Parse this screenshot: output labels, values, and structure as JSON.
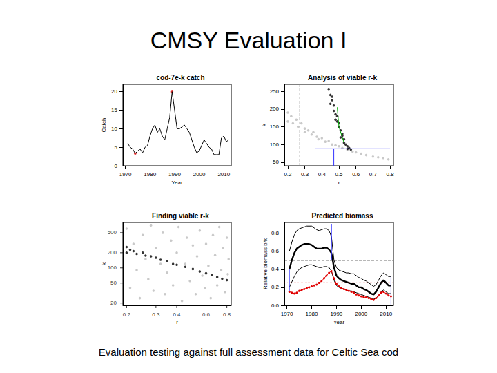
{
  "title": "CMSY Evaluation I",
  "caption": "Evaluation testing against full assessment data for Celtic Sea cod",
  "chart_data": [
    {
      "type": "line",
      "title": "cod-7e-k catch",
      "x_label": "Year",
      "y_label": "Catch",
      "x": [
        1971,
        1972,
        1973,
        1974,
        1975,
        1976,
        1977,
        1978,
        1979,
        1980,
        1981,
        1982,
        1983,
        1984,
        1985,
        1986,
        1987,
        1988,
        1989,
        1990,
        1991,
        1992,
        1993,
        1994,
        1995,
        1996,
        1997,
        1998,
        1999,
        2000,
        2001,
        2002,
        2003,
        2004,
        2005,
        2006,
        2007,
        2008,
        2009,
        2010,
        2011,
        2012
      ],
      "xlim": [
        1969,
        2013
      ],
      "xticks": [
        1970,
        1980,
        1990,
        2000,
        2010
      ],
      "ylim": [
        0,
        22
      ],
      "yticks": [
        0,
        5,
        10,
        15,
        20
      ],
      "grid": false,
      "series": [
        {
          "type": "line",
          "color": "#000000",
          "line_style": "solid",
          "values": [
            6,
            5,
            4.5,
            3.3,
            4,
            4.5,
            3.5,
            5,
            5.5,
            8,
            10,
            11,
            9,
            10,
            8,
            7,
            10,
            13,
            20,
            15,
            10,
            10,
            10.5,
            11,
            10,
            9,
            7,
            5,
            3.5,
            4,
            5.5,
            7,
            6,
            5,
            4.5,
            3,
            3,
            3,
            7.5,
            8,
            6.5,
            7
          ]
        },
        {
          "type": "scatter",
          "color": "#e00000",
          "marker": "circle",
          "x": [
            1974,
            1989
          ],
          "values": [
            3.3,
            20
          ]
        }
      ]
    },
    {
      "type": "scatter",
      "title": "Analysis of viable r-k",
      "x_label": "r",
      "y_label": "k",
      "xlim": [
        0.18,
        0.82
      ],
      "xticks": [
        0.2,
        0.3,
        0.4,
        0.5,
        0.6,
        0.7,
        0.8
      ],
      "ylim": [
        40,
        270
      ],
      "yticks": [
        50,
        100,
        150,
        200,
        250
      ],
      "grid": false,
      "series": [
        {
          "type": "scatter",
          "color": "#bbbbbb",
          "marker": "circle",
          "x": [
            0.2,
            0.2,
            0.22,
            0.23,
            0.25,
            0.26,
            0.28,
            0.3,
            0.3,
            0.32,
            0.34,
            0.35,
            0.37,
            0.38,
            0.4,
            0.42,
            0.44,
            0.46,
            0.48,
            0.5,
            0.52,
            0.55,
            0.58,
            0.6,
            0.63,
            0.66,
            0.7,
            0.73,
            0.76,
            0.79
          ],
          "values": [
            190,
            165,
            180,
            160,
            170,
            150,
            160,
            145,
            135,
            140,
            128,
            135,
            122,
            115,
            118,
            108,
            110,
            100,
            98,
            95,
            90,
            85,
            80,
            78,
            74,
            70,
            66,
            64,
            62,
            58
          ]
        },
        {
          "type": "scatter",
          "color": "#000000",
          "marker": "circle",
          "x": [
            0.44,
            0.45,
            0.46,
            0.45,
            0.47,
            0.47,
            0.48,
            0.49,
            0.48,
            0.5,
            0.5,
            0.51,
            0.52,
            0.51,
            0.53,
            0.53,
            0.54,
            0.55,
            0.56,
            0.49,
            0.46,
            0.52,
            0.55,
            0.57
          ],
          "values": [
            255,
            240,
            225,
            215,
            210,
            195,
            185,
            180,
            170,
            160,
            150,
            140,
            130,
            120,
            115,
            105,
            100,
            95,
            90,
            165,
            235,
            125,
            88,
            86
          ]
        },
        {
          "type": "line",
          "color": "#00aa00",
          "line_style": "solid",
          "x": [
            0.49,
            0.5,
            0.53
          ],
          "values": [
            205,
            150,
            105
          ]
        },
        {
          "type": "line",
          "color": "#3333ff",
          "line_style": "solid",
          "x": [
            0.47,
            0.47
          ],
          "values": [
            40,
            88
          ]
        },
        {
          "type": "line",
          "color": "#3333ff",
          "line_style": "solid",
          "x": [
            0.36,
            0.8
          ],
          "values": [
            88,
            88
          ]
        },
        {
          "type": "line",
          "color": "#888888",
          "line_style": "dashed",
          "x": [
            0.27,
            0.27
          ],
          "values": [
            40,
            270
          ]
        }
      ]
    },
    {
      "type": "scatter",
      "title": "Finding viable r-k",
      "x_label": "r",
      "y_label": "k",
      "log": true,
      "xlim": [
        0.19,
        0.85
      ],
      "xticks": [
        0.2,
        0.3,
        0.4,
        0.6,
        0.8
      ],
      "ylim": [
        18,
        800
      ],
      "yticks": [
        20,
        50,
        100,
        200,
        500
      ],
      "grid": false,
      "series": [
        {
          "type": "scatter",
          "color": "#bbbbbb",
          "marker": "circle",
          "x": [
            0.2,
            0.21,
            0.22,
            0.23,
            0.24,
            0.25,
            0.26,
            0.27,
            0.28,
            0.29,
            0.3,
            0.32,
            0.33,
            0.34,
            0.35,
            0.37,
            0.38,
            0.4,
            0.41,
            0.43,
            0.45,
            0.46,
            0.48,
            0.5,
            0.52,
            0.53,
            0.55,
            0.57,
            0.59,
            0.6,
            0.62,
            0.64,
            0.66,
            0.68,
            0.7,
            0.72,
            0.74,
            0.76,
            0.78,
            0.8,
            0.82,
            0.81
          ],
          "values": [
            600,
            40,
            300,
            90,
            25,
            450,
            150,
            60,
            700,
            35,
            250,
            120,
            500,
            30,
            80,
            350,
            45,
            200,
            650,
            22,
            120,
            400,
            55,
            280,
            30,
            170,
            550,
            70,
            40,
            300,
            110,
            25,
            450,
            180,
            45,
            650,
            90,
            250,
            33,
            400,
            150,
            75
          ]
        },
        {
          "type": "scatter",
          "color": "#000000",
          "marker": "circle",
          "x": [
            0.2,
            0.2,
            0.21,
            0.22,
            0.23,
            0.25,
            0.26,
            0.28,
            0.3,
            0.32,
            0.35,
            0.38,
            0.4,
            0.45,
            0.5,
            0.55,
            0.6,
            0.65,
            0.7,
            0.75,
            0.8
          ],
          "values": [
            260,
            200,
            230,
            215,
            190,
            200,
            175,
            170,
            160,
            145,
            135,
            120,
            115,
            105,
            95,
            85,
            78,
            72,
            66,
            61,
            57
          ]
        }
      ]
    },
    {
      "type": "line",
      "title": "Predicted biomass",
      "x_label": "Year",
      "y_label": "Relative biomass b/k",
      "x": [
        1971,
        1972,
        1973,
        1974,
        1975,
        1976,
        1977,
        1978,
        1979,
        1980,
        1981,
        1982,
        1983,
        1984,
        1985,
        1986,
        1987,
        1988,
        1989,
        1990,
        1991,
        1992,
        1993,
        1994,
        1995,
        1996,
        1997,
        1998,
        1999,
        2000,
        2001,
        2002,
        2003,
        2004,
        2005,
        2006,
        2007,
        2008,
        2009,
        2010,
        2011,
        2012
      ],
      "xlim": [
        1969,
        2013
      ],
      "xticks": [
        1970,
        1980,
        1990,
        2000,
        2010
      ],
      "ylim": [
        0,
        0.92
      ],
      "yticks": [
        {
          "value": 0,
          "label": "0.0"
        },
        0.2,
        0.4,
        0.6,
        0.8
      ],
      "grid": false,
      "series": [
        {
          "type": "line",
          "color": "#000000",
          "line_style": "solid",
          "values": [
            0.6,
            0.7,
            0.78,
            0.83,
            0.85,
            0.86,
            0.87,
            0.88,
            0.88,
            0.88,
            0.86,
            0.84,
            0.83,
            0.84,
            0.85,
            0.85,
            0.83,
            0.76,
            0.5,
            0.42,
            0.39,
            0.38,
            0.37,
            0.36,
            0.36,
            0.35,
            0.35,
            0.33,
            0.31,
            0.3,
            0.28,
            0.27,
            0.25,
            0.23,
            0.21,
            0.23,
            0.28,
            0.33,
            0.36,
            0.34,
            0.32,
            0.32
          ]
        },
        {
          "type": "line",
          "color": "#000000",
          "line_style": "solid",
          "values": [
            0.2,
            0.26,
            0.32,
            0.37,
            0.4,
            0.42,
            0.43,
            0.44,
            0.45,
            0.45,
            0.44,
            0.43,
            0.42,
            0.42,
            0.43,
            0.43,
            0.42,
            0.38,
            0.28,
            0.22,
            0.2,
            0.19,
            0.18,
            0.17,
            0.16,
            0.16,
            0.15,
            0.14,
            0.13,
            0.12,
            0.11,
            0.1,
            0.09,
            0.08,
            0.07,
            0.08,
            0.11,
            0.15,
            0.17,
            0.15,
            0.13,
            0.13
          ]
        },
        {
          "type": "line",
          "color": "#000000",
          "line_style": "thick",
          "values": [
            0.4,
            0.5,
            0.58,
            0.63,
            0.65,
            0.67,
            0.68,
            0.68,
            0.68,
            0.67,
            0.65,
            0.63,
            0.63,
            0.63,
            0.64,
            0.64,
            0.62,
            0.58,
            0.42,
            0.33,
            0.3,
            0.28,
            0.27,
            0.26,
            0.25,
            0.24,
            0.24,
            0.22,
            0.2,
            0.2,
            0.18,
            0.17,
            0.15,
            0.13,
            0.12,
            0.15,
            0.2,
            0.25,
            0.28,
            0.25,
            0.22,
            0.22
          ]
        },
        {
          "type": "line",
          "color": "#e00000",
          "line_style": "solid",
          "marker": "circle",
          "values": [
            0.15,
            0.14,
            0.13,
            0.14,
            0.16,
            0.17,
            0.18,
            0.19,
            0.2,
            0.21,
            0.22,
            0.23,
            0.25,
            0.27,
            0.3,
            0.33,
            0.36,
            0.38,
            0.3,
            0.24,
            0.21,
            0.19,
            0.18,
            0.17,
            0.16,
            0.15,
            0.14,
            0.12,
            0.11,
            0.1,
            0.09,
            0.09,
            0.08,
            0.07,
            0.06,
            0.08,
            0.11,
            0.14,
            0.15,
            0.13,
            0.11,
            0.1
          ]
        },
        {
          "type": "line",
          "color": "#000000",
          "line_style": "dashed",
          "x": [
            1969,
            2013
          ],
          "values": [
            0.5,
            0.5
          ]
        },
        {
          "type": "line",
          "color": "#e00000",
          "line_style": "dotted",
          "x": [
            1969,
            2013
          ],
          "values": [
            0.25,
            0.25
          ]
        },
        {
          "type": "line",
          "color": "#3333ff",
          "line_style": "solid",
          "x": [
            1971,
            1971
          ],
          "values": [
            0.15,
            0.4
          ]
        },
        {
          "type": "line",
          "color": "#3333ff",
          "line_style": "solid",
          "x": [
            1988,
            1988
          ],
          "values": [
            0.5,
            0.9
          ]
        },
        {
          "type": "line",
          "color": "#3333ff",
          "line_style": "solid",
          "x": [
            2012,
            2012
          ],
          "values": [
            0,
            0.32
          ]
        }
      ]
    }
  ]
}
